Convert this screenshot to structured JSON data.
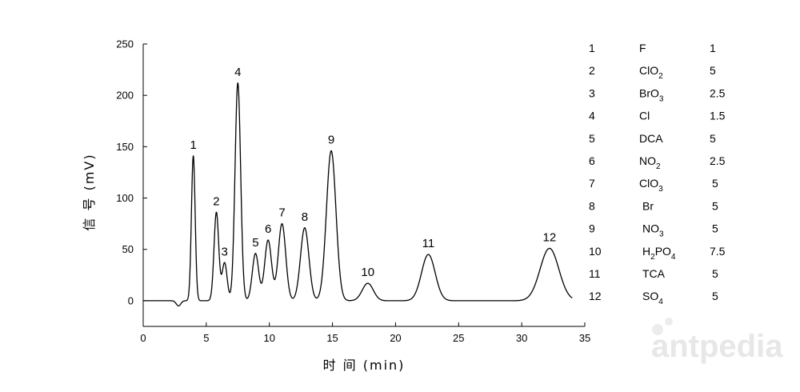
{
  "chart_data": {
    "type": "line",
    "xlabel": "时 间 (min)",
    "ylabel": "信 号 (mV)",
    "xlim": [
      0,
      35
    ],
    "ylim": [
      -25,
      250
    ],
    "x_ticks": [
      "0",
      "5",
      "10",
      "15",
      "20",
      "25",
      "30",
      "35"
    ],
    "y_ticks": [
      "0",
      "50",
      "100",
      "150",
      "200",
      "250"
    ],
    "grid": false,
    "baseline": 0,
    "dip": {
      "x": 2.8,
      "y": -5
    },
    "peaks": [
      {
        "label": "1",
        "x": 3.97,
        "y": 141
      },
      {
        "label": "2",
        "x": 5.8,
        "y": 86
      },
      {
        "label": "3",
        "x": 6.45,
        "y": 37
      },
      {
        "label": "4",
        "x": 7.5,
        "y": 212
      },
      {
        "label": "5",
        "x": 8.9,
        "y": 46
      },
      {
        "label": "6",
        "x": 9.9,
        "y": 59
      },
      {
        "label": "7",
        "x": 11.0,
        "y": 75
      },
      {
        "label": "8",
        "x": 12.8,
        "y": 71
      },
      {
        "label": "9",
        "x": 14.9,
        "y": 146
      },
      {
        "label": "10",
        "x": 17.8,
        "y": 17
      },
      {
        "label": "11",
        "x": 22.6,
        "y": 45
      },
      {
        "label": "12",
        "x": 32.2,
        "y": 51
      }
    ],
    "legend": [
      {
        "num": "1",
        "name": "F",
        "sub": "",
        "name_after": "",
        "conc": "1"
      },
      {
        "num": "2",
        "name": "ClO",
        "sub": "2",
        "name_after": "",
        "conc": "5"
      },
      {
        "num": "3",
        "name": "BrO",
        "sub": "3",
        "name_after": "",
        "conc": "2.5"
      },
      {
        "num": "4",
        "name": "Cl",
        "sub": "",
        "name_after": "",
        "conc": "1.5"
      },
      {
        "num": "5",
        "name": "DCA",
        "sub": "",
        "name_after": "",
        "conc": "5"
      },
      {
        "num": "6",
        "name": "NO",
        "sub": "2",
        "name_after": "",
        "conc": "2.5"
      },
      {
        "num": "7",
        "name": "ClO",
        "sub": "3",
        "name_after": "",
        "conc": "5"
      },
      {
        "num": "8",
        "name": "Br",
        "sub": "",
        "name_after": "",
        "conc": "5"
      },
      {
        "num": "9",
        "name": "NO",
        "sub": "3",
        "name_after": "",
        "conc": "5"
      },
      {
        "num": "10",
        "name": "H",
        "sub": "2",
        "name_after": "PO",
        "sub2": "4",
        "conc": "7.5"
      },
      {
        "num": "11",
        "name": "TCA",
        "sub": "",
        "name_after": "",
        "conc": "5"
      },
      {
        "num": "12",
        "name": "SO",
        "sub": "4",
        "name_after": "",
        "conc": "5"
      }
    ]
  },
  "watermark": {
    "text": "antpedia"
  },
  "colors": {
    "line": "#000000",
    "watermark": "#e7e7e7"
  }
}
